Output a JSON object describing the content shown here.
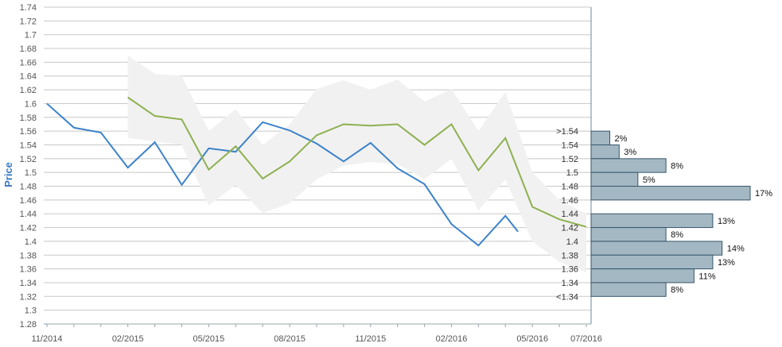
{
  "chart_data": {
    "type": "line",
    "ylabel": "Price",
    "ylim": [
      1.28,
      1.74
    ],
    "y_ticks": [
      "1.28",
      "1.3",
      "1.32",
      "1.34",
      "1.36",
      "1.38",
      "1.4",
      "1.42",
      "1.44",
      "1.46",
      "1.48",
      "1.5",
      "1.52",
      "1.54",
      "1.56",
      "1.58",
      "1.6",
      "1.62",
      "1.64",
      "1.66",
      "1.68",
      "1.7",
      "1.72",
      "1.74"
    ],
    "x_tick_labels": [
      "11/2014",
      "02/2015",
      "05/2015",
      "08/2015",
      "11/2015",
      "02/2016",
      "05/2016",
      "07/2016"
    ],
    "grid": true,
    "colors": {
      "price": "#3b82c9",
      "forecast": "#8db050",
      "band": "#f1f1f1",
      "dist_fill": "#a4b8c4",
      "dist_stroke": "#37566a",
      "grid": "#c8c8c8"
    },
    "series": [
      {
        "color": "#3b82c9",
        "points": [
          [
            "2014-11",
            1.6
          ],
          [
            "2014-12",
            1.565
          ],
          [
            "2015-01",
            1.558
          ],
          [
            "2015-02",
            1.507
          ],
          [
            "2015-03",
            1.544
          ],
          [
            "2015-04",
            1.482
          ],
          [
            "2015-05",
            1.535
          ],
          [
            "2015-06",
            1.53
          ],
          [
            "2015-07",
            1.573
          ],
          [
            "2015-08",
            1.561
          ],
          [
            "2015-09",
            1.542
          ],
          [
            "2015-10",
            1.516
          ],
          [
            "2015-11",
            1.543
          ],
          [
            "2015-12",
            1.506
          ],
          [
            "2016-01",
            1.483
          ],
          [
            "2016-02",
            1.425
          ],
          [
            "2016-03",
            1.394
          ],
          [
            "2016-04",
            1.437
          ],
          [
            "2016-04-15",
            1.414
          ]
        ]
      },
      {
        "color": "#8db050",
        "points": [
          [
            "2015-02",
            1.609
          ],
          [
            "2015-03",
            1.582
          ],
          [
            "2015-04",
            1.577
          ],
          [
            "2015-05",
            1.504
          ],
          [
            "2015-06",
            1.538
          ],
          [
            "2015-07",
            1.491
          ],
          [
            "2015-08",
            1.516
          ],
          [
            "2015-09",
            1.554
          ],
          [
            "2015-10",
            1.57
          ],
          [
            "2015-11",
            1.568
          ],
          [
            "2015-12",
            1.57
          ],
          [
            "2016-01",
            1.54
          ],
          [
            "2016-02",
            1.57
          ],
          [
            "2016-03",
            1.503
          ],
          [
            "2016-04",
            1.55
          ],
          [
            "2016-05",
            1.45
          ],
          [
            "2016-06",
            1.432
          ],
          [
            "2016-07",
            1.421
          ]
        ]
      }
    ],
    "band": [
      [
        "2015-02",
        1.55,
        1.67
      ],
      [
        "2015-03",
        1.545,
        1.643
      ],
      [
        "2015-04",
        1.54,
        1.64
      ],
      [
        "2015-05",
        1.452,
        1.56
      ],
      [
        "2015-06",
        1.482,
        1.592
      ],
      [
        "2015-07",
        1.441,
        1.54
      ],
      [
        "2015-08",
        1.455,
        1.57
      ],
      [
        "2015-09",
        1.49,
        1.621
      ],
      [
        "2015-10",
        1.51,
        1.634
      ],
      [
        "2015-11",
        1.515,
        1.62
      ],
      [
        "2015-12",
        1.512,
        1.635
      ],
      [
        "2016-01",
        1.49,
        1.603
      ],
      [
        "2016-02",
        1.52,
        1.621
      ],
      [
        "2016-03",
        1.445,
        1.56
      ],
      [
        "2016-04",
        1.49,
        1.617
      ],
      [
        "2016-05",
        1.4,
        1.5
      ],
      [
        "2016-06",
        1.37,
        1.46
      ],
      [
        "2016-07",
        1.355,
        1.44
      ]
    ],
    "distribution": [
      {
        "label": ">1.54",
        "pct": "2%",
        "value": 2,
        "lo": 1.54,
        "hi": 1.56
      },
      {
        "label": "1.54",
        "pct": "3%",
        "value": 3,
        "lo": 1.52,
        "hi": 1.54
      },
      {
        "label": "1.52",
        "pct": "8%",
        "value": 8,
        "lo": 1.5,
        "hi": 1.52
      },
      {
        "label": "1.5",
        "pct": "5%",
        "value": 5,
        "lo": 1.48,
        "hi": 1.5
      },
      {
        "label": "1.48",
        "pct": "17%",
        "value": 17,
        "lo": 1.46,
        "hi": 1.48
      },
      {
        "label": "1.46",
        "pct": "",
        "value": 0,
        "lo": 1.44,
        "hi": 1.46
      },
      {
        "label": "1.44",
        "pct": "13%",
        "value": 13,
        "lo": 1.42,
        "hi": 1.44
      },
      {
        "label": "1.42",
        "pct": "8%",
        "value": 8,
        "lo": 1.4,
        "hi": 1.42
      },
      {
        "label": "1.4",
        "pct": "14%",
        "value": 14,
        "lo": 1.38,
        "hi": 1.4
      },
      {
        "label": "1.38",
        "pct": "13%",
        "value": 13,
        "lo": 1.36,
        "hi": 1.38
      },
      {
        "label": "1.36",
        "pct": "11%",
        "value": 11,
        "lo": 1.34,
        "hi": 1.36
      },
      {
        "label": "1.34",
        "pct": "8%",
        "value": 8,
        "lo": 1.32,
        "hi": 1.34
      },
      {
        "label": "<1.34",
        "pct": "",
        "value": 0,
        "lo": 1.32,
        "hi": 1.32
      }
    ]
  }
}
